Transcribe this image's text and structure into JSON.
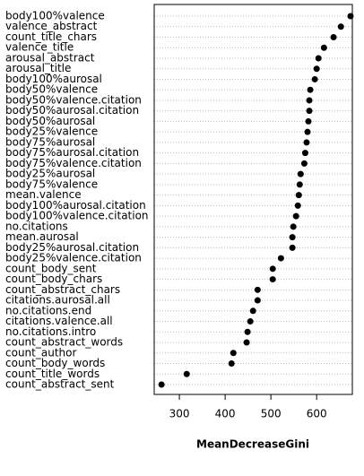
{
  "chart_data": {
    "type": "dot",
    "xlabel": "MeanDecreaseGini",
    "categories": [
      "body100%valence",
      "valence_abstract",
      "count_title_chars",
      "valence_title",
      "arousal_abstract",
      "arousal_title",
      "body100%aurosal",
      "body50%valence",
      "body50%valence.citation",
      "body50%aurosal.citation",
      "body50%aurosal",
      "body25%valence",
      "body75%aurosal",
      "body75%aurosal.citation",
      "body75%valence.citation",
      "body25%aurosal",
      "body75%valence",
      "mean.valence",
      "body100%aurosal.citation",
      "body100%valence.citation",
      "no.citations",
      "mean.aurosal",
      "body25%aurosal.citation",
      "body25%valence.citation",
      "count_body_sent",
      "count_body_chars",
      "count_abstract_chars",
      "citations.aurosal.all",
      "no.citations.end",
      "citations.valence.all",
      "no.citations.intro",
      "count_abstract_words",
      "count_author",
      "count_body_words",
      "count_title_words",
      "count_abstract_sent"
    ],
    "values": [
      674,
      653,
      637,
      616,
      604,
      600,
      596,
      586,
      584,
      584,
      582,
      580,
      578,
      575,
      573,
      565,
      563,
      561,
      559,
      555,
      549,
      547,
      547,
      522,
      504,
      504,
      471,
      471,
      461,
      455,
      449,
      447,
      418,
      414,
      316,
      261
    ],
    "color": "#000000",
    "xlim": [
      245,
      678
    ],
    "xticks": [
      300,
      400,
      500,
      600
    ],
    "grid": true
  }
}
